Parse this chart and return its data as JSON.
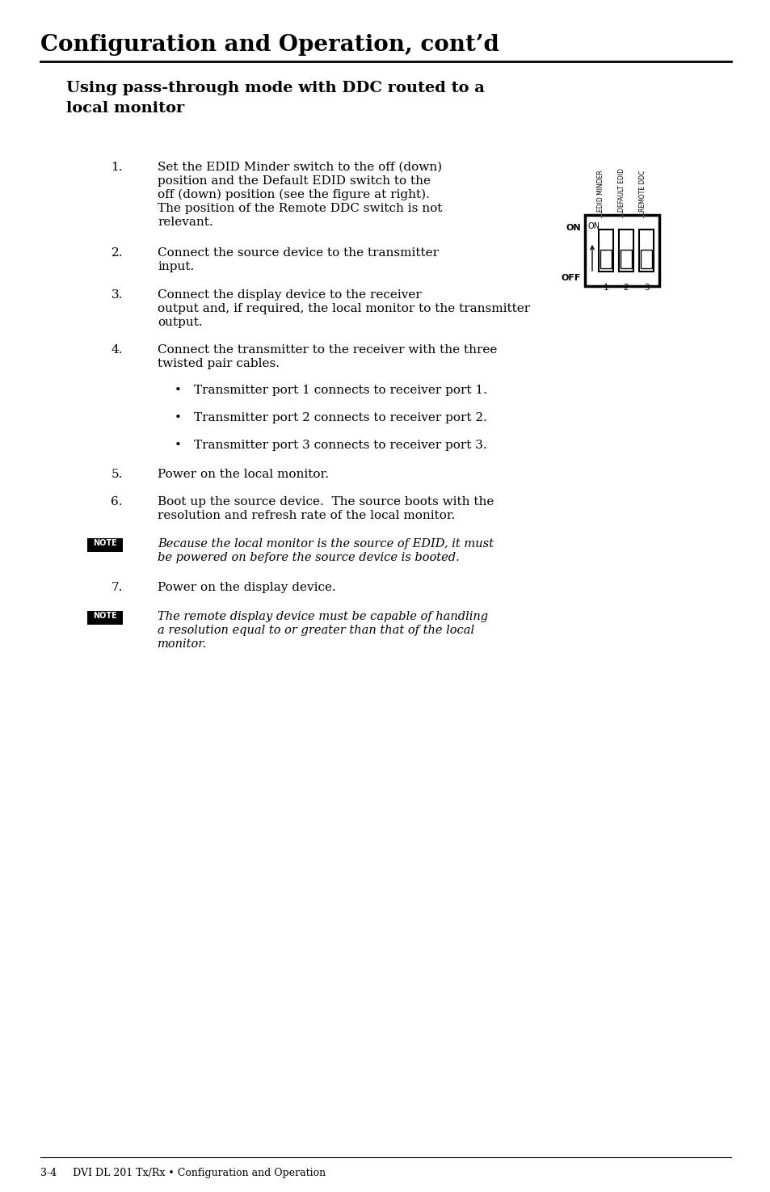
{
  "title": "Configuration and Operation, cont’d",
  "section_line1": "Using pass-through mode with DDC routed to a",
  "section_line2": "local monitor",
  "bg_color": "#ffffff",
  "text_color": "#000000",
  "title_fontsize": 20,
  "section_fontsize": 14,
  "body_fontsize": 11,
  "note_fontsize": 10.5,
  "footer_text": "3-4     DVI DL 201 Tx/Rx • Configuration and Operation",
  "steps": [
    {
      "num": "1.",
      "text": "Set the EDID Minder switch to the off (down)\nposition and the Default EDID switch to the\noff (down) position (see the figure at right).\nThe position of the Remote DDC switch is not\nrelevant."
    },
    {
      "num": "2.",
      "text": "Connect the source device to the transmitter\ninput."
    },
    {
      "num": "3.",
      "text": "Connect the display device to the receiver\noutput and, if required, the local monitor to the transmitter\noutput."
    },
    {
      "num": "4.",
      "text": "Connect the transmitter to the receiver with the three\ntwisted pair cables."
    },
    {
      "num": "5.",
      "text": "Power on the local monitor."
    },
    {
      "num": "6.",
      "text": "Boot up the source device.  The source boots with the\nresolution and refresh rate of the local monitor."
    }
  ],
  "bullets": [
    "Transmitter port 1 connects to receiver port 1.",
    "Transmitter port 2 connects to receiver port 2.",
    "Transmitter port 3 connects to receiver port 3."
  ],
  "step7": {
    "num": "7.",
    "text": "Power on the display device."
  },
  "note1_text": "Because the local monitor is the source of EDID, it must\nbe powered on before the source device is booted.",
  "note2_text": "The remote display device must be capable of handling\na resolution equal to or greater than that of the local\nmonitor.",
  "switch_labels": [
    "EDID MINDER",
    "DEFAULT EDID",
    "REMOTE DDC"
  ],
  "switch_numbers": [
    "1",
    "2",
    "3"
  ]
}
